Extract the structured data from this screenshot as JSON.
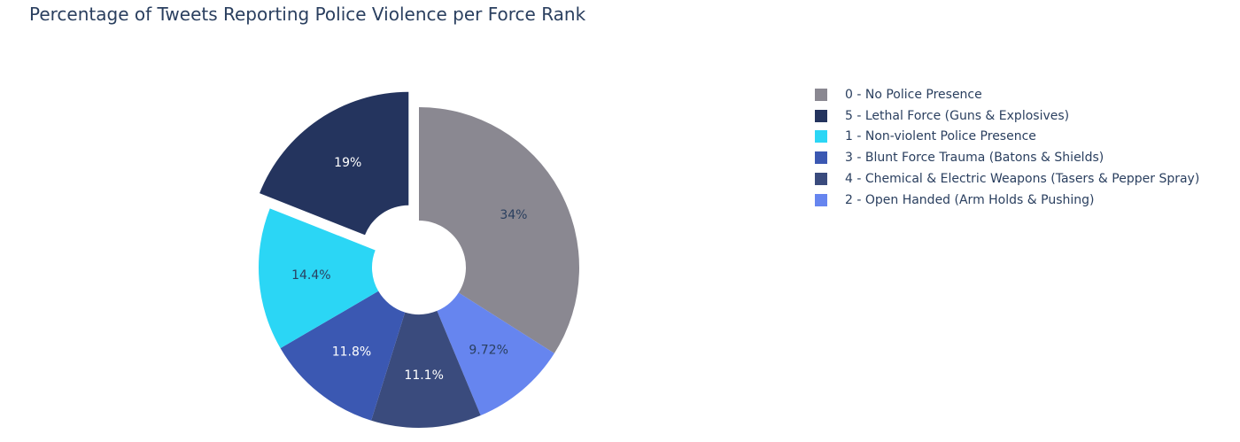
{
  "chart_data": {
    "type": "pie",
    "title": "Percentage of Tweets Reporting Police Violence per Force Rank",
    "hole": true,
    "sort": "descending",
    "direction": "clockwise",
    "legend_position": "right",
    "slices": [
      {
        "label": "0 - No Police Presence",
        "value": 34,
        "text": "34%",
        "color": "#8a8891",
        "text_color": "#2a3f5f",
        "pulled": false
      },
      {
        "label": "2 - Open Handed (Arm Holds & Pushing)",
        "value": 9.72,
        "text": "9.72%",
        "color": "#6685ef",
        "text_color": "#2a3f5f",
        "pulled": false
      },
      {
        "label": "4 - Chemical & Electric Weapons (Tasers & Pepper Spray)",
        "value": 11.1,
        "text": "11.1%",
        "color": "#3a4b7d",
        "text_color": "#ffffff",
        "pulled": false
      },
      {
        "label": "3 - Blunt Force Trauma (Batons & Shields)",
        "value": 11.8,
        "text": "11.8%",
        "color": "#3b58b2",
        "text_color": "#ffffff",
        "pulled": false
      },
      {
        "label": "1 - Non-violent Police Presence",
        "value": 14.4,
        "text": "14.4%",
        "color": "#2bd6f5",
        "text_color": "#2a3f5f",
        "pulled": false
      },
      {
        "label": "5 - Lethal Force (Guns & Explosives)",
        "value": 19,
        "text": "19%",
        "color": "#24345e",
        "text_color": "#ffffff",
        "pulled": true
      }
    ],
    "legend_order": [
      "0 - No Police Presence",
      "5 - Lethal Force (Guns & Explosives)",
      "1 - Non-violent Police Presence",
      "3 - Blunt Force Trauma (Batons & Shields)",
      "4 - Chemical & Electric Weapons (Tasers & Pepper Spray)",
      "2 - Open Handed (Arm Holds & Pushing)"
    ]
  }
}
